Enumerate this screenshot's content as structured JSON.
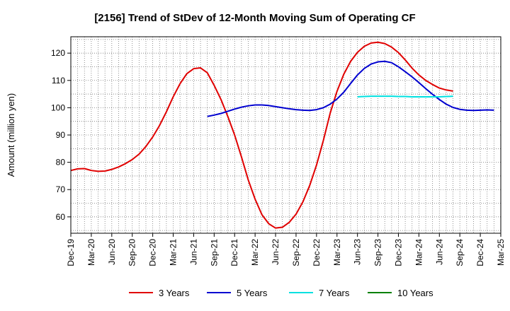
{
  "chart_data": {
    "type": "line",
    "title": "[2156]  Trend of StDev of 12-Month Moving Sum of Operating CF",
    "xlabel": "",
    "ylabel": "Amount (million yen)",
    "ylim": [
      54,
      126
    ],
    "yticks": [
      60,
      70,
      80,
      90,
      100,
      110,
      120
    ],
    "x_tick_labels": [
      "Dec-19",
      "Mar-20",
      "Jun-20",
      "Sep-20",
      "Dec-20",
      "Mar-21",
      "Jun-21",
      "Sep-21",
      "Dec-21",
      "Mar-22",
      "Jun-22",
      "Sep-22",
      "Dec-22",
      "Mar-23",
      "Jun-23",
      "Sep-23",
      "Dec-23",
      "Mar-24",
      "Jun-24",
      "Sep-24",
      "Dec-24",
      "Mar-25"
    ],
    "grid": true,
    "legend_position": "bottom",
    "series": [
      {
        "name": "3 Years",
        "color": "#e00000",
        "start_index": 0,
        "values": [
          77.0,
          77.6,
          77.7,
          77.0,
          76.7,
          76.8,
          77.4,
          78.3,
          79.5,
          81.0,
          83.0,
          85.8,
          89.3,
          93.5,
          98.5,
          104.0,
          108.8,
          112.5,
          114.3,
          114.6,
          112.8,
          108.2,
          103.0,
          96.8,
          90.0,
          82.0,
          73.5,
          66.5,
          60.8,
          57.5,
          55.9,
          56.2,
          58.0,
          61.0,
          65.5,
          71.5,
          79.0,
          88.0,
          98.0,
          106.0,
          112.3,
          117.0,
          120.3,
          122.5,
          123.7,
          124.0,
          123.5,
          122.2,
          120.2,
          117.5,
          114.5,
          112.0,
          110.0,
          108.5,
          107.2,
          106.5,
          106.1
        ]
      },
      {
        "name": "5 Years",
        "color": "#0000d0",
        "start_index": 20,
        "values": [
          96.8,
          97.3,
          97.9,
          98.7,
          99.5,
          100.2,
          100.7,
          101.0,
          101.0,
          100.8,
          100.4,
          100.0,
          99.6,
          99.3,
          99.1,
          99.0,
          99.3,
          100.0,
          101.3,
          103.2,
          105.7,
          108.9,
          112.0,
          114.4,
          116.0,
          116.8,
          117.0,
          116.5,
          115.0,
          113.2,
          111.3,
          109.2,
          107.0,
          104.9,
          103.0,
          101.3,
          100.1,
          99.4,
          99.1,
          99.0,
          99.1,
          99.2,
          99.1
        ]
      },
      {
        "name": "7 Years",
        "color": "#00e0e0",
        "start_index": 42,
        "values": [
          104.0,
          104.1,
          104.2,
          104.2,
          104.2,
          104.2,
          104.1,
          104.1,
          104.0,
          104.0,
          104.0,
          104.0,
          104.0,
          104.1,
          104.2
        ]
      },
      {
        "name": "10 Years",
        "color": "#008000",
        "start_index": 0,
        "values": []
      }
    ]
  }
}
